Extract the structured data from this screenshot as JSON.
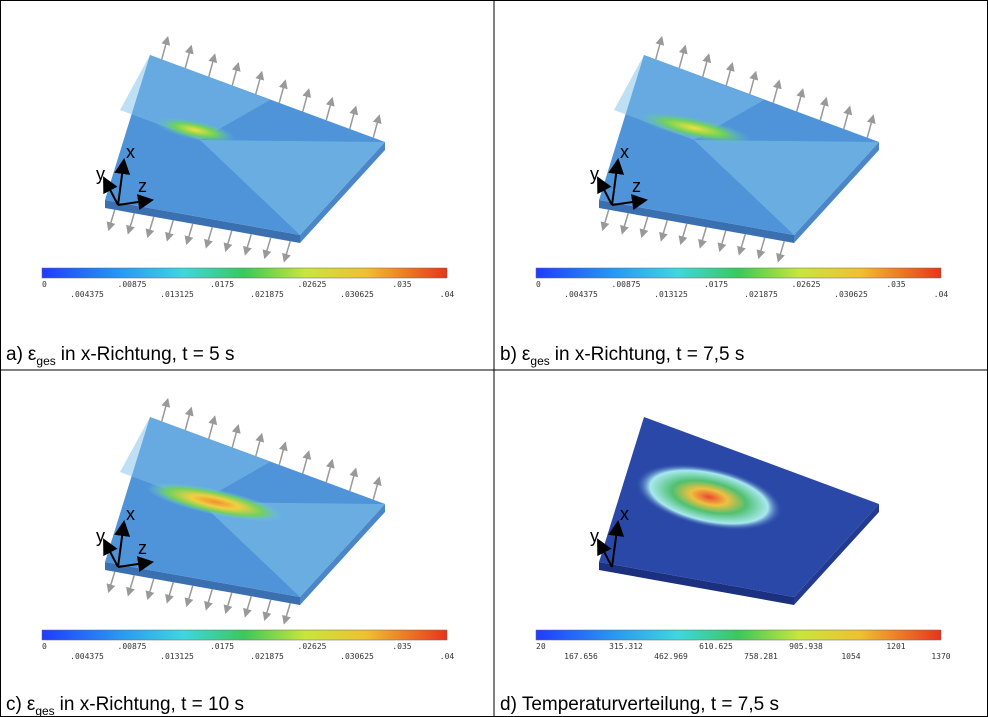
{
  "panels": [
    {
      "caption": {
        "prefix": "a)",
        "symbol": "ε",
        "sub": "ges",
        "rest": "in x-Richtung, t = 5 s"
      },
      "axis_labels": [
        "x",
        "y",
        "z"
      ],
      "colorbar_labels": [
        "0",
        ".004375",
        ".00875",
        ".013125",
        ".0175",
        ".021875",
        ".02625",
        ".030625",
        ".035",
        ".04"
      ]
    },
    {
      "caption": {
        "prefix": "b)",
        "symbol": "ε",
        "sub": "ges",
        "rest": "in x-Richtung, t = 7,5 s"
      },
      "axis_labels": [
        "x",
        "y",
        "z"
      ],
      "colorbar_labels": [
        "0",
        ".004375",
        ".00875",
        ".013125",
        ".0175",
        ".021875",
        ".02625",
        ".030625",
        ".035",
        ".04"
      ]
    },
    {
      "caption": {
        "prefix": "c)",
        "symbol": "ε",
        "sub": "ges",
        "rest": "in x-Richtung, t = 10 s"
      },
      "axis_labels": [
        "x",
        "y",
        "z"
      ],
      "colorbar_labels": [
        "0",
        ".004375",
        ".00875",
        ".013125",
        ".0175",
        ".021875",
        ".02625",
        ".030625",
        ".035",
        ".04"
      ]
    },
    {
      "caption": {
        "prefix": "d) Temperaturverteilung, t = 7,5 s"
      },
      "axis_labels": [
        "x",
        "y"
      ],
      "colorbar_labels": [
        "20",
        "167.656",
        "315.312",
        "462.969",
        "610.625",
        "758.281",
        "905.938",
        "1054",
        "1201",
        "1370"
      ]
    }
  ]
}
